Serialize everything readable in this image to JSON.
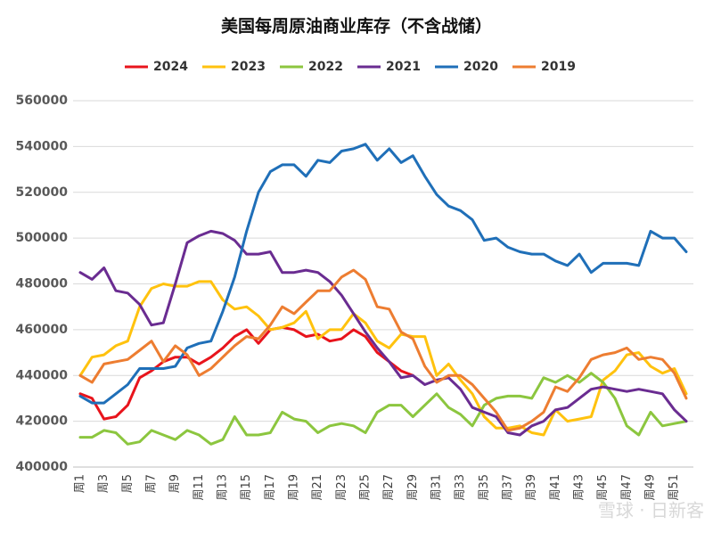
{
  "chart_data": {
    "type": "line",
    "title": "美国每周原油商业库存（不含战储）",
    "categories": [
      "周1",
      null,
      "周3",
      null,
      "周5",
      null,
      "周7",
      null,
      "周9",
      null,
      "周11",
      null,
      "周13",
      null,
      "周15",
      null,
      "周17",
      null,
      "周19",
      null,
      "周21",
      null,
      "周23",
      null,
      "周25",
      null,
      "周27",
      null,
      "周29",
      null,
      "周31",
      null,
      "周33",
      null,
      "周35",
      null,
      "周37",
      null,
      "周39",
      null,
      "周41",
      null,
      "周43",
      null,
      "周45",
      null,
      "周47",
      null,
      "周49",
      null,
      "周51",
      null
    ],
    "ylim": [
      400000,
      560000
    ],
    "yticks": [
      400000,
      420000,
      440000,
      460000,
      480000,
      500000,
      520000,
      540000,
      560000
    ],
    "grid": true,
    "legend": "top",
    "watermark": "雪球 · 日新客",
    "series": [
      {
        "name": "2024",
        "color": "#e8141c",
        "values": [
          432000,
          430000,
          421000,
          422000,
          427000,
          439000,
          442000,
          446000,
          448000,
          448000,
          445000,
          448000,
          452000,
          457000,
          460000,
          454000,
          460000,
          461000,
          460000,
          457000,
          458000,
          455000,
          456000,
          460000,
          457000,
          450000,
          446000,
          442000,
          440000,
          null,
          null,
          null,
          null,
          null,
          null,
          null,
          null,
          null,
          null,
          null,
          null,
          null,
          null,
          null,
          null,
          null,
          null,
          null,
          null,
          null,
          null,
          null
        ]
      },
      {
        "name": "2023",
        "color": "#ffc20e",
        "values": [
          440000,
          448000,
          449000,
          453000,
          455000,
          470000,
          478000,
          480000,
          479000,
          479000,
          481000,
          481000,
          473000,
          469000,
          470000,
          466000,
          460000,
          461000,
          463000,
          468000,
          456000,
          460000,
          460000,
          467000,
          463000,
          455000,
          452000,
          458000,
          457000,
          457000,
          440000,
          445000,
          438000,
          432000,
          422000,
          417000,
          417000,
          418000,
          415000,
          414000,
          425000,
          420000,
          421000,
          422000,
          438000,
          442000,
          449000,
          450000,
          444000,
          441000,
          443000,
          432000
        ]
      },
      {
        "name": "2022",
        "color": "#8cc63f",
        "values": [
          413000,
          413000,
          416000,
          415000,
          410000,
          411000,
          416000,
          414000,
          412000,
          416000,
          414000,
          410000,
          412000,
          422000,
          414000,
          414000,
          415000,
          424000,
          421000,
          420000,
          415000,
          418000,
          419000,
          418000,
          415000,
          424000,
          427000,
          427000,
          422000,
          427000,
          432000,
          426000,
          423000,
          418000,
          427000,
          430000,
          431000,
          431000,
          430000,
          439000,
          437000,
          440000,
          437000,
          441000,
          437000,
          430000,
          418000,
          414000,
          424000,
          418000,
          419000,
          420000
        ]
      },
      {
        "name": "2021",
        "color": "#6a2c91",
        "values": [
          485000,
          482000,
          487000,
          477000,
          476000,
          471000,
          462000,
          463000,
          480000,
          498000,
          501000,
          503000,
          502000,
          499000,
          493000,
          493000,
          494000,
          485000,
          485000,
          486000,
          485000,
          481000,
          475000,
          467000,
          459000,
          452000,
          446000,
          439000,
          440000,
          436000,
          438000,
          439000,
          434000,
          426000,
          424000,
          422000,
          415000,
          414000,
          418000,
          420000,
          425000,
          426000,
          430000,
          434000,
          435000,
          434000,
          433000,
          434000,
          433000,
          432000,
          425000,
          420000
        ]
      },
      {
        "name": "2020",
        "color": "#1f6fb8",
        "values": [
          431000,
          428000,
          428000,
          432000,
          436000,
          443000,
          443000,
          443000,
          444000,
          452000,
          454000,
          455000,
          468000,
          483000,
          503000,
          520000,
          529000,
          532000,
          532000,
          527000,
          534000,
          533000,
          538000,
          539000,
          541000,
          534000,
          539000,
          533000,
          536000,
          527000,
          519000,
          514000,
          512000,
          508000,
          499000,
          500000,
          496000,
          494000,
          493000,
          493000,
          490000,
          488000,
          493000,
          485000,
          489000,
          489000,
          489000,
          488000,
          503000,
          500000,
          500000,
          494000
        ]
      },
      {
        "name": "2019",
        "color": "#ed7d31",
        "values": [
          440000,
          437000,
          445000,
          446000,
          447000,
          451000,
          455000,
          446000,
          453000,
          449000,
          440000,
          443000,
          448000,
          453000,
          457000,
          456000,
          462000,
          470000,
          467000,
          472000,
          477000,
          477000,
          483000,
          486000,
          482000,
          470000,
          469000,
          459000,
          456000,
          444000,
          437000,
          440000,
          440000,
          436000,
          430000,
          424000,
          416000,
          417000,
          420000,
          424000,
          435000,
          433000,
          439000,
          447000,
          449000,
          450000,
          452000,
          447000,
          448000,
          447000,
          441000,
          430000
        ]
      }
    ]
  }
}
